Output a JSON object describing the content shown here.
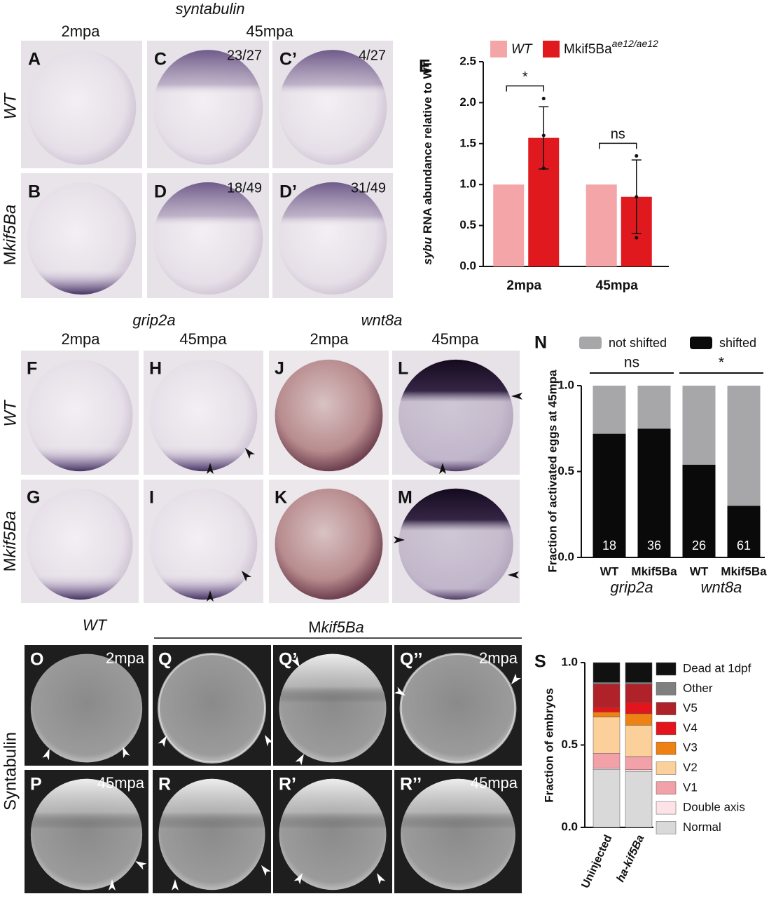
{
  "figure": {
    "top": {
      "gene": "syntabulin",
      "stage_early": "2mpa",
      "stage_late": "45mpa",
      "row_wt": "WT",
      "row_mut_prefix": "M",
      "row_mut_italic": "kif5Ba"
    },
    "top_panels": [
      {
        "label": "A"
      },
      {
        "label": "C",
        "count": "23/27"
      },
      {
        "label": "C’",
        "count": "4/27"
      },
      {
        "label": "B"
      },
      {
        "label": "D",
        "count": "18/49"
      },
      {
        "label": "D’",
        "count": "31/49"
      }
    ],
    "middle": {
      "gene_left": "grip2a",
      "gene_right": "wnt8a",
      "stages": [
        "2mpa",
        "45mpa",
        "2mpa",
        "45mpa"
      ],
      "row_wt": "WT",
      "row_mut_prefix": "M",
      "row_mut_italic": "kif5Ba"
    },
    "middle_panels": [
      {
        "label": "F"
      },
      {
        "label": "H"
      },
      {
        "label": "J"
      },
      {
        "label": "L"
      },
      {
        "label": "G"
      },
      {
        "label": "I"
      },
      {
        "label": "K"
      },
      {
        "label": "M"
      }
    ],
    "bottom": {
      "col_wt": "WT",
      "col_mut_prefix": "M",
      "col_mut_italic": "kif5Ba",
      "row": "Syntabulin"
    },
    "bottom_panels": [
      {
        "label": "O",
        "stage": "2mpa"
      },
      {
        "label": "Q"
      },
      {
        "label": "Q’"
      },
      {
        "label": "Q’’",
        "stage": "2mpa"
      },
      {
        "label": "P",
        "stage": "45mpa"
      },
      {
        "label": "R"
      },
      {
        "label": "R’"
      },
      {
        "label": "R’’",
        "stage": "45mpa"
      }
    ]
  },
  "chart_data": [
    {
      "type": "bar",
      "panel": "E",
      "ylabel_italic": "sybu",
      "ylabel": "RNA abundance relative to WT",
      "categories": [
        "2mpa",
        "45mpa"
      ],
      "series": [
        {
          "name": "WT",
          "color": "#f4a5a8",
          "values": [
            1.0,
            1.0
          ]
        },
        {
          "name": "Mkif5Ba",
          "name_superscript": "ae12/ae12",
          "color": "#e0191f",
          "values": [
            1.57,
            0.85
          ],
          "errors": [
            0.38,
            0.45
          ],
          "points": [
            [
              2.05,
              1.6,
              1.2
            ],
            [
              1.35,
              0.85,
              0.35
            ]
          ]
        }
      ],
      "ylim": [
        0,
        2.5
      ],
      "yticks": [
        {
          "value": 0,
          "label": "0.0"
        },
        {
          "value": 0.5,
          "label": "0.5"
        },
        {
          "value": 1,
          "label": "1.0"
        },
        {
          "value": 1.5,
          "label": "1.5"
        },
        {
          "value": 2,
          "label": "2.0"
        },
        {
          "value": 2.5,
          "label": "2.5"
        }
      ],
      "significance": [
        "*",
        "ns"
      ]
    },
    {
      "type": "stacked_bar",
      "panel": "N",
      "ylabel": "Fraction of activated eggs at 45mpa",
      "categories": [
        "WT",
        "Mkif5Ba",
        "WT",
        "Mkif5Ba"
      ],
      "groups": [
        "grip2a",
        "wnt8a"
      ],
      "series": [
        {
          "name": "not shifted",
          "color": "#a7a7a9",
          "values": [
            0.28,
            0.25,
            0.46,
            0.7
          ]
        },
        {
          "name": "shifted",
          "color": "#0a0a0a",
          "values": [
            0.72,
            0.75,
            0.54,
            0.3
          ]
        }
      ],
      "n": [
        18,
        36,
        26,
        61
      ],
      "ylim": [
        0,
        1
      ],
      "yticks": [
        {
          "value": 0,
          "label": "0.0"
        },
        {
          "value": 0.5,
          "label": "0.5"
        },
        {
          "value": 1,
          "label": "1.0"
        }
      ],
      "significance": [
        "ns",
        "*"
      ]
    },
    {
      "type": "stacked_bar",
      "panel": "S",
      "ylabel": "Fraction of embryos",
      "categories": [
        "Uninjected",
        "ha-kif5Ba"
      ],
      "series": [
        {
          "name": "Dead at 1dpf",
          "color": "#111111",
          "values": [
            0.12,
            0.12
          ]
        },
        {
          "name": "Other",
          "color": "#7f7f7f",
          "values": [
            0.01,
            0.01
          ]
        },
        {
          "name": "V5",
          "color": "#b0222a",
          "values": [
            0.14,
            0.11
          ]
        },
        {
          "name": "V4",
          "color": "#e3141c",
          "values": [
            0.03,
            0.07
          ]
        },
        {
          "name": "V3",
          "color": "#ee8113",
          "values": [
            0.03,
            0.07
          ]
        },
        {
          "name": "V2",
          "color": "#fbd09a",
          "values": [
            0.22,
            0.19
          ]
        },
        {
          "name": "V1",
          "color": "#f2a1a8",
          "values": [
            0.09,
            0.08
          ]
        },
        {
          "name": "Double axis",
          "color": "#fde3e8",
          "values": [
            0.01,
            0.01
          ]
        },
        {
          "name": "Normal",
          "color": "#d9d9d9",
          "values": [
            0.35,
            0.34
          ]
        }
      ],
      "ylim": [
        0,
        1
      ],
      "yticks": [
        {
          "value": 0,
          "label": "0.0"
        },
        {
          "value": 0.5,
          "label": "0.5"
        },
        {
          "value": 1,
          "label": "1.0"
        }
      ]
    }
  ]
}
